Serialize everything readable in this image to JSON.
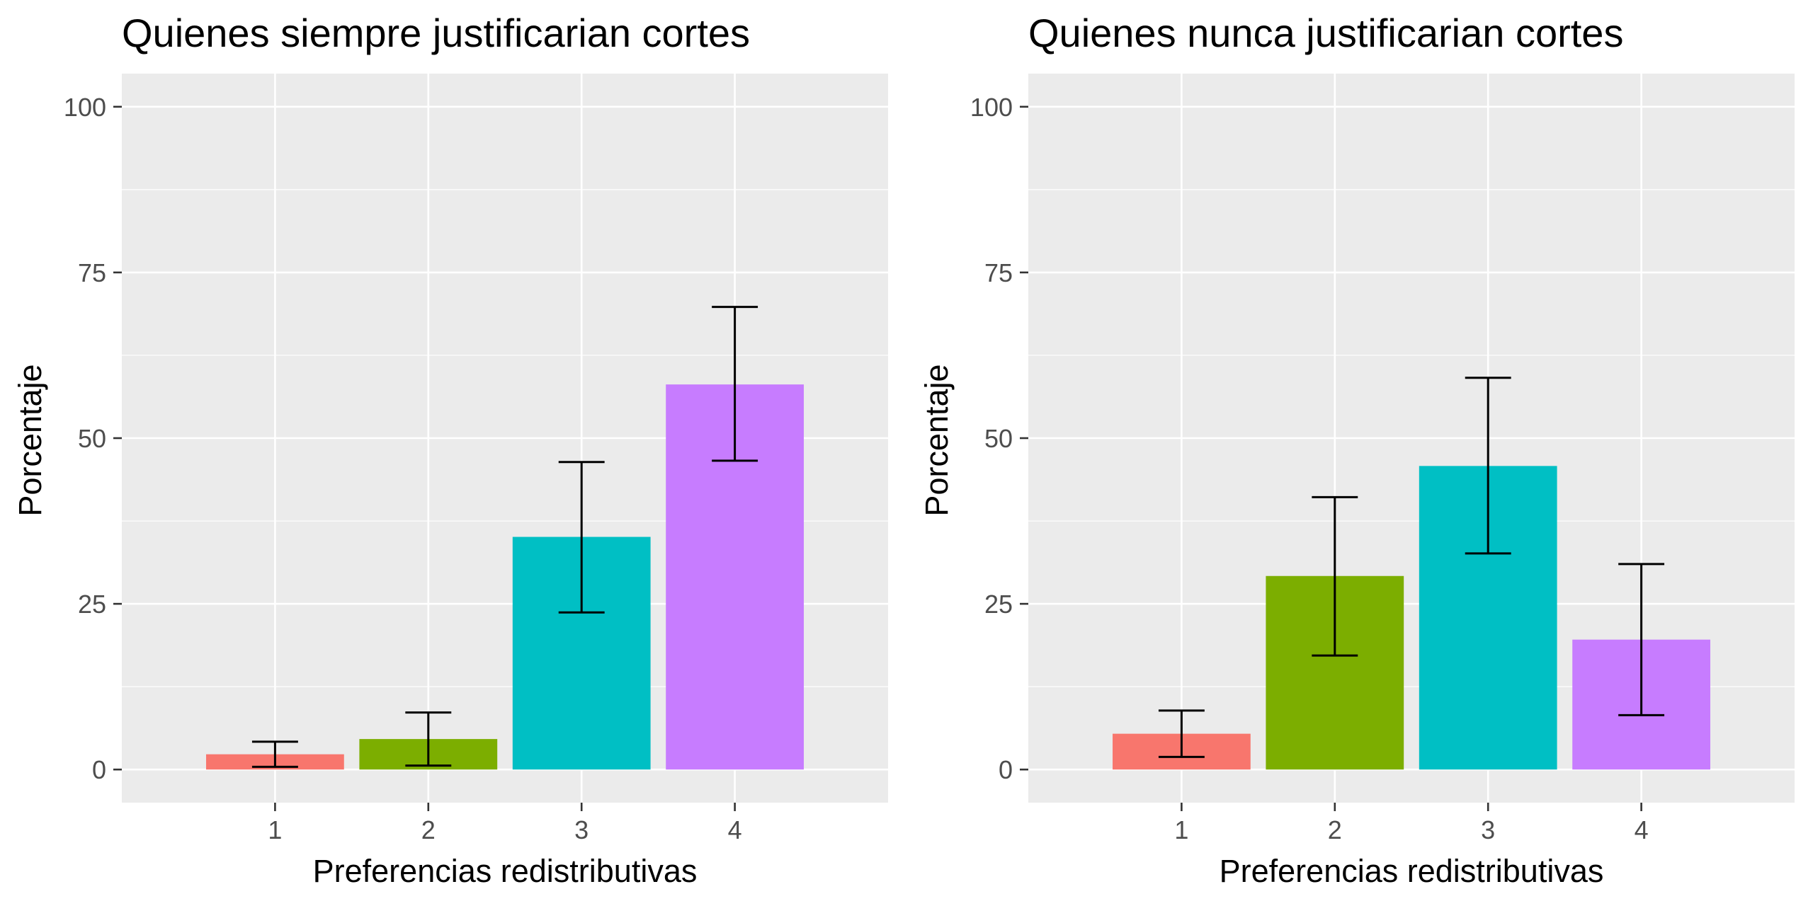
{
  "colors": {
    "panel_background": "#EBEBEB",
    "grid": "#FFFFFF",
    "tick": "#333333",
    "tick_label": "#4D4D4D",
    "error_bar": "#000000",
    "categories": [
      "#F8766D",
      "#7CAE00",
      "#00BFC4",
      "#C77CFF"
    ]
  },
  "chart_data": [
    {
      "type": "bar",
      "title": "Quienes siempre justificarian cortes",
      "xlabel": "Preferencias redistributivas",
      "ylabel": "Porcentaje",
      "categories": [
        "1",
        "2",
        "3",
        "4"
      ],
      "values": [
        2.3,
        4.6,
        35.1,
        58.1
      ],
      "error_low": [
        0.4,
        0.6,
        23.7,
        46.6
      ],
      "error_high": [
        4.2,
        8.6,
        46.4,
        69.8
      ],
      "yticks": [
        0,
        25,
        50,
        75,
        100
      ],
      "ylim": [
        -5,
        105
      ],
      "grid": true,
      "legend": "none"
    },
    {
      "type": "bar",
      "title": "Quienes nunca justificarian cortes",
      "xlabel": "Preferencias redistributivas",
      "ylabel": "Porcentaje",
      "categories": [
        "1",
        "2",
        "3",
        "4"
      ],
      "values": [
        5.4,
        29.2,
        45.8,
        19.6
      ],
      "error_low": [
        1.9,
        17.2,
        32.6,
        8.2
      ],
      "error_high": [
        8.9,
        41.1,
        59.1,
        31.0
      ],
      "yticks": [
        0,
        25,
        50,
        75,
        100
      ],
      "ylim": [
        -5,
        105
      ],
      "grid": true,
      "legend": "none"
    }
  ]
}
